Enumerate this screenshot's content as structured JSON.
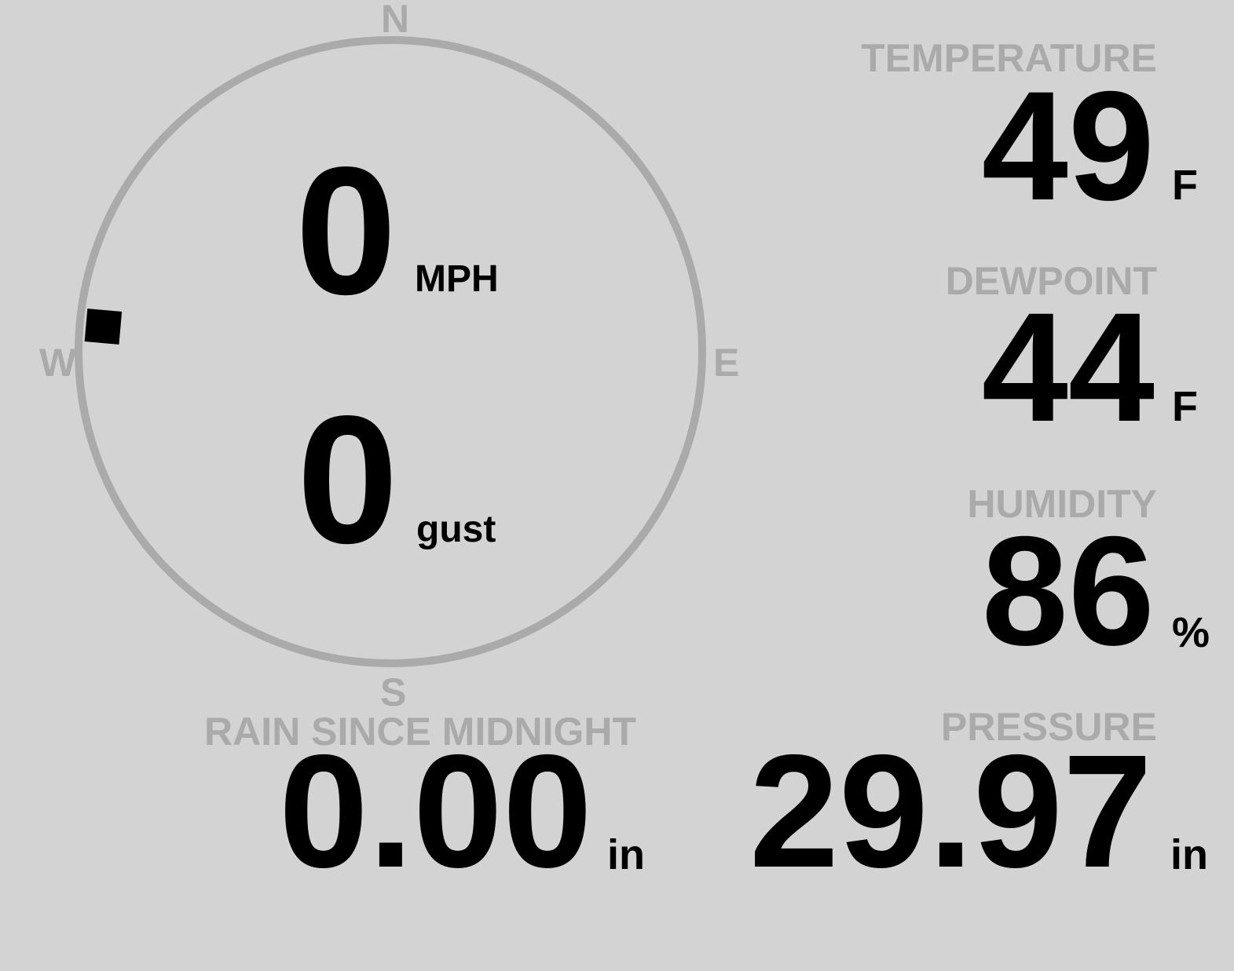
{
  "colors": {
    "background": "#d3d3d3",
    "label": "#aaaaaa",
    "value": "#000000",
    "ring": "#aaaaaa"
  },
  "wind": {
    "compass": {
      "n": "N",
      "e": "E",
      "s": "S",
      "w": "W"
    },
    "direction_degrees": 275,
    "speed": "0",
    "speed_unit": "MPH",
    "gust": "0",
    "gust_unit": "gust"
  },
  "temperature": {
    "label": "TEMPERATURE",
    "value": "49",
    "unit": "F"
  },
  "dewpoint": {
    "label": "DEWPOINT",
    "value": "44",
    "unit": "F"
  },
  "humidity": {
    "label": "HUMIDITY",
    "value": "86",
    "unit": "%"
  },
  "pressure": {
    "label": "PRESSURE",
    "value": "29.97",
    "unit": "in"
  },
  "rain": {
    "label": "RAIN SINCE MIDNIGHT",
    "value": "0.00",
    "unit": "in"
  }
}
